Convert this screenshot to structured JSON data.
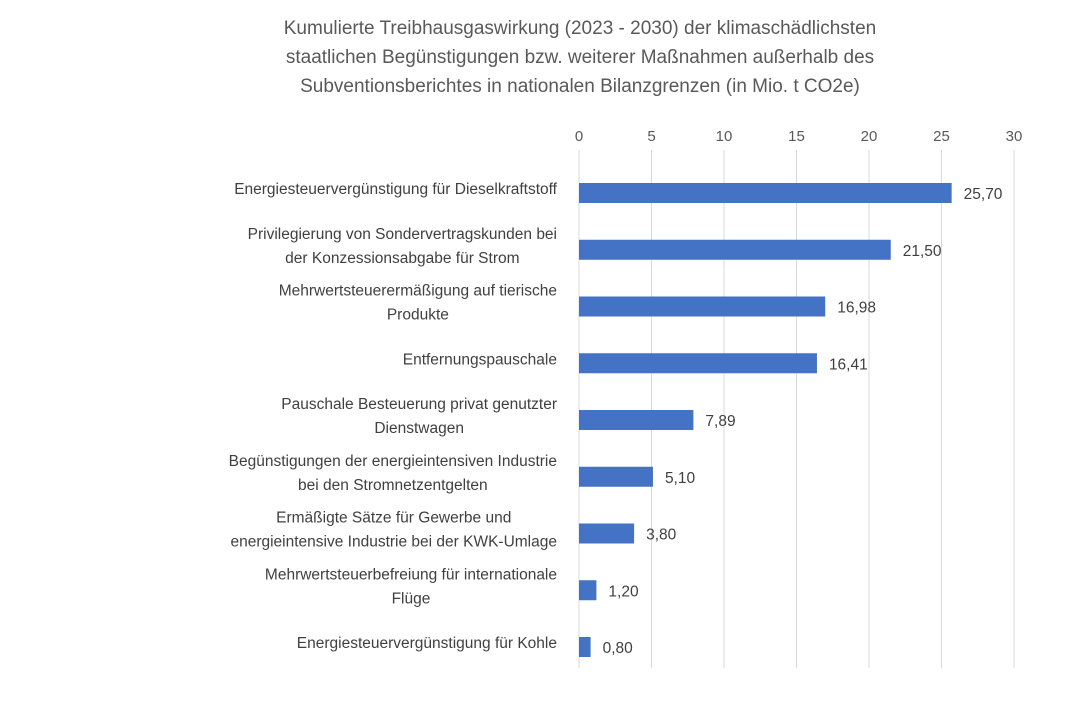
{
  "chart_data": {
    "type": "bar",
    "orientation": "horizontal",
    "title_lines": [
      "Kumulierte Treibhausgaswirkung (2023 - 2030) der klimaschädlichsten",
      "staatlichen Begünstigungen bzw. weiterer Maßnahmen außerhalb des",
      "Subventionsberichtes in nationalen Bilanzgrenzen (in Mio. t CO2e)"
    ],
    "categories": [
      [
        "Energiesteuervergünstigung für Dieselkraftstoff"
      ],
      [
        "Privilegierung von Sondervertragskunden bei",
        "der Konzessionsabgabe für Strom"
      ],
      [
        "Mehrwertsteuerermäßigung auf tierische",
        "Produkte"
      ],
      [
        "Entfernungspauschale"
      ],
      [
        "Pauschale Besteuerung privat genutzter",
        "Dienstwagen"
      ],
      [
        "Begünstigungen der energieintensiven Industrie",
        "bei den Stromnetzentgelten"
      ],
      [
        "Ermäßigte Sätze für Gewerbe und",
        "energieintensive Industrie bei der KWK-Umlage"
      ],
      [
        "Mehrwertsteuerbefreiung für internationale",
        "Flüge"
      ],
      [
        "Energiesteuervergünstigung für Kohle"
      ]
    ],
    "values": [
      25.7,
      21.5,
      16.98,
      16.41,
      7.89,
      5.1,
      3.8,
      1.2,
      0.8
    ],
    "data_labels": [
      "25,70",
      "21,50",
      "16,98",
      "16,41",
      "7,89",
      "5,10",
      "3,80",
      "1,20",
      "0,80"
    ],
    "x_ticks": [
      "0",
      "5",
      "10",
      "15",
      "20",
      "25",
      "30"
    ],
    "xlim": [
      0,
      30
    ],
    "axis_position": "top",
    "grid": true,
    "bar_color": "#4472c4"
  }
}
